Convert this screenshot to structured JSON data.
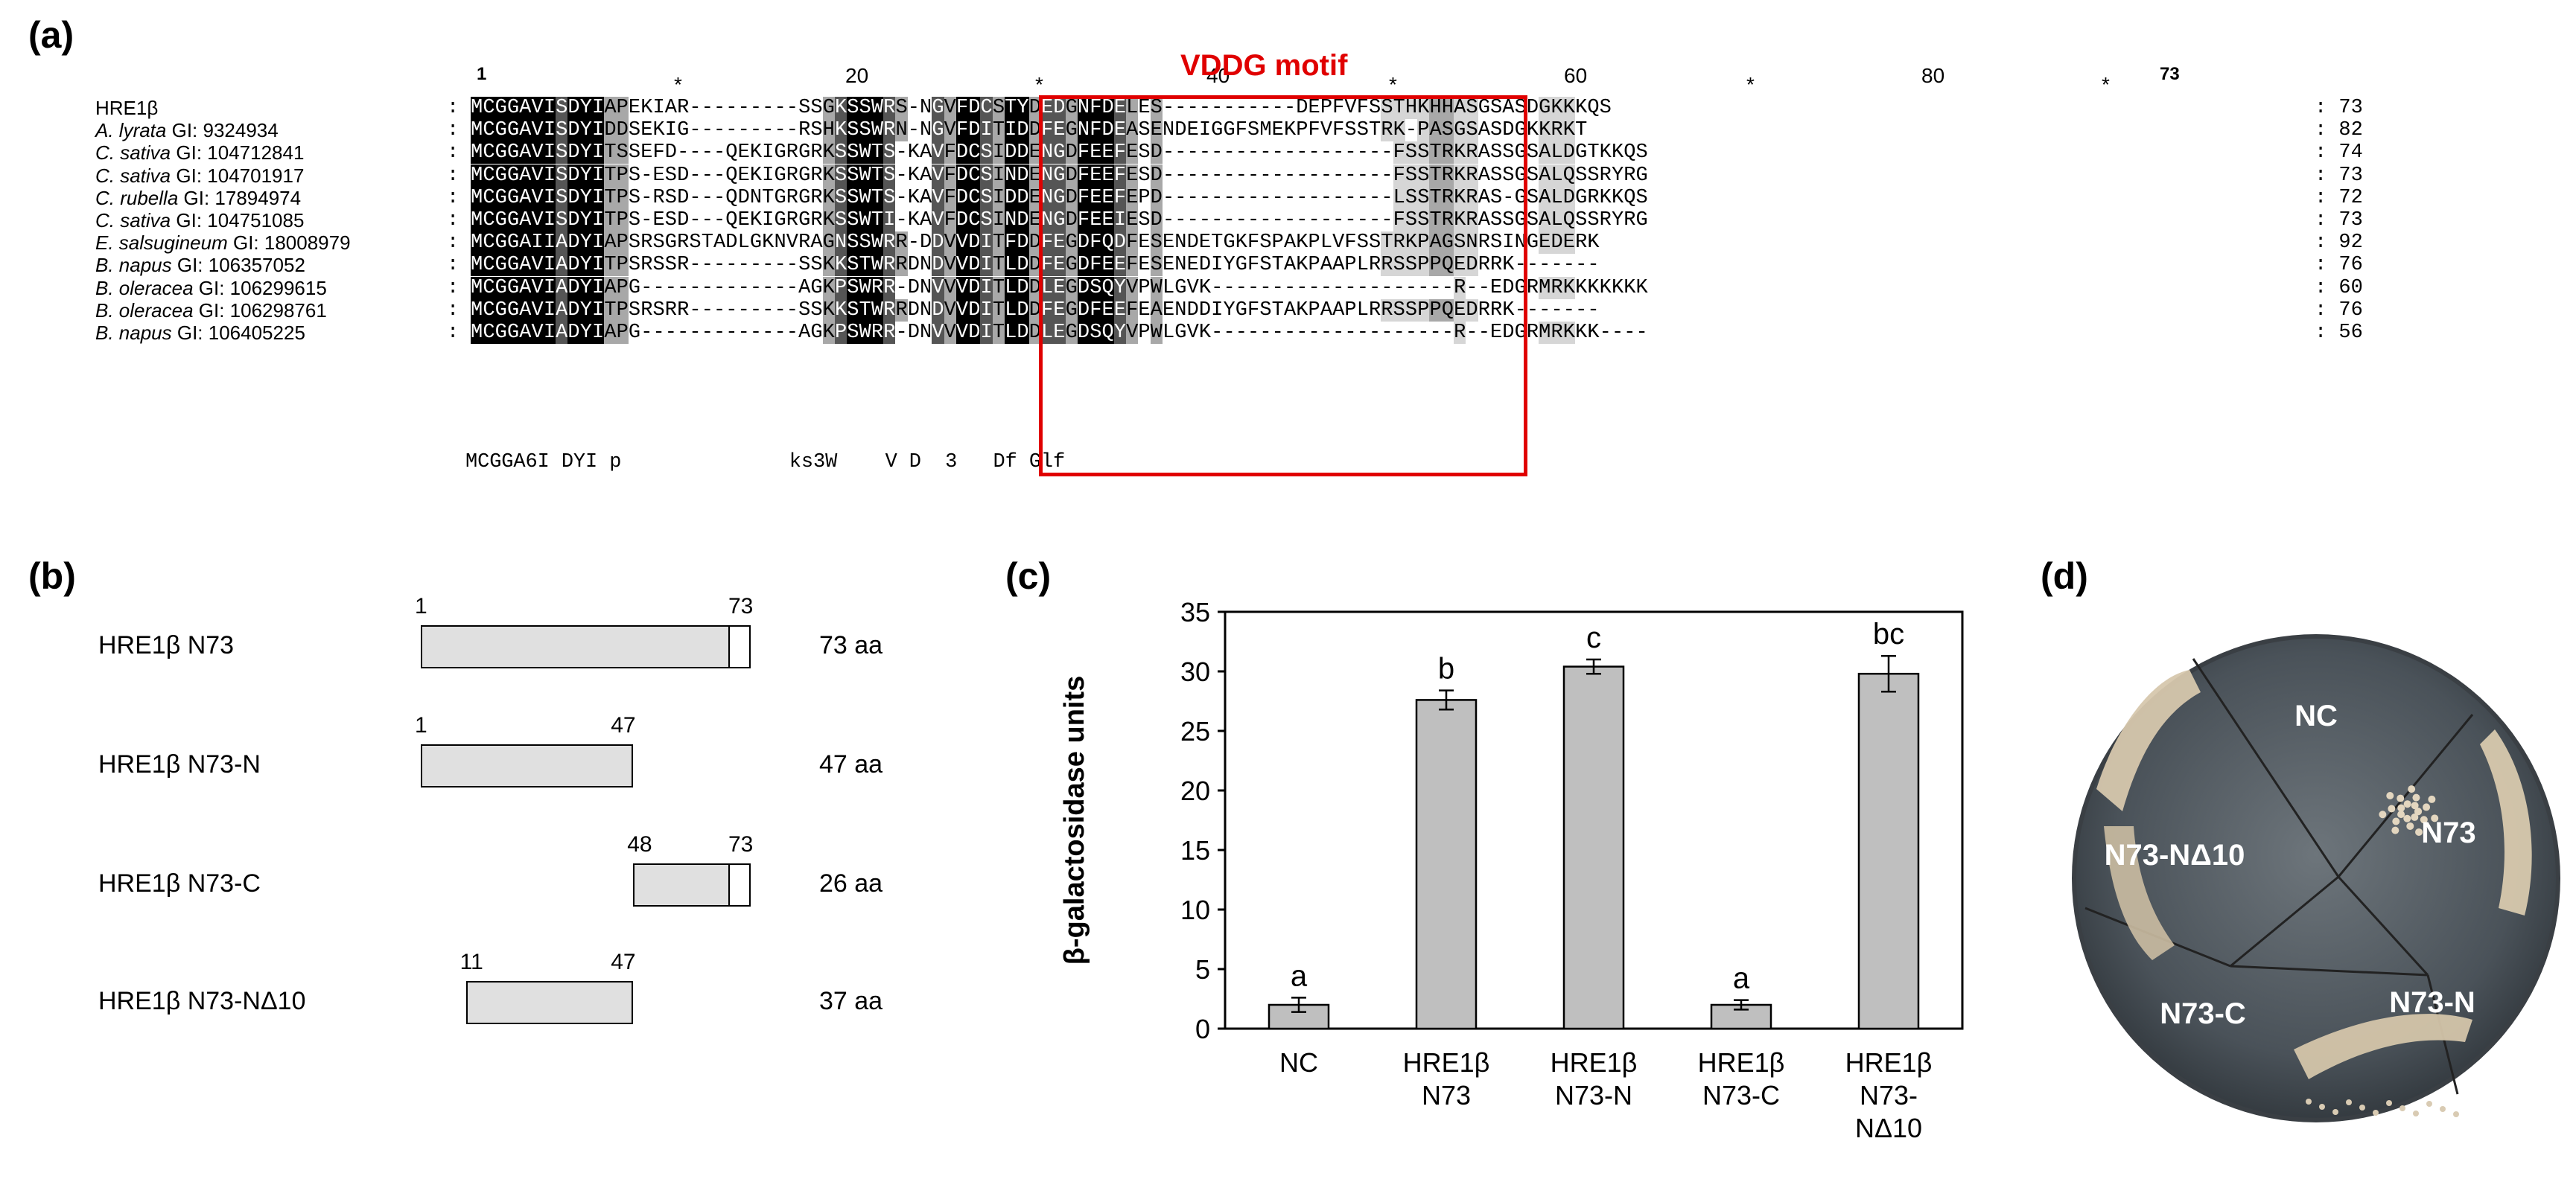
{
  "panels": {
    "a": "(a)",
    "b": "(b)",
    "c": "(c)",
    "d": "(d)"
  },
  "alignment": {
    "motif_label": "VDDG motif",
    "ruler": [
      {
        "text": "1",
        "bold": true
      },
      {
        "text": "*",
        "bold": false
      },
      {
        "text": "20",
        "bold": false
      },
      {
        "text": "*",
        "bold": false
      },
      {
        "text": "40",
        "bold": false
      },
      {
        "text": "*",
        "bold": false
      },
      {
        "text": "60",
        "bold": false
      },
      {
        "text": "*",
        "bold": false
      },
      {
        "text": "80",
        "bold": false
      },
      {
        "text": "*",
        "bold": false
      },
      {
        "text": "73",
        "bold": true
      }
    ],
    "sequences": [
      {
        "species": "HRE1β",
        "gi": "",
        "seq": "MCGGAVISDYIAPEKIAR---------SSGKSSWRS-NGVFDCSTYDEDGNFDELES-----------DEPFVFSSTHKHHASGSASDGKKKQS",
        "len": "73"
      },
      {
        "species": "A. lyrata",
        "gi": "GI: 9324934",
        "seq": "MCGGAVISDYIDDSEKIG---------RSHKSSWRN-NGVFDITIDDFEGNFDEASENDEIGGFSMEKPFVFSSTRK-PASGSASDGKKRKT",
        "len": "82"
      },
      {
        "species": "C. sativa",
        "gi": "GI: 104712841",
        "seq": "MCGGAVISDYITSSEFD----QEKIGRGRKSSWTS-KAVFDCSIDDENGDFEEFESD-------------------FSSTRKRASSGSALDGTKKQS",
        "len": "74"
      },
      {
        "species": "C. sativa",
        "gi": "GI: 104701917",
        "seq": "MCGGAVISDYITPS-ESD---QEKIGRGRKSSWTS-KAVFDCSINDENGDFEEFESD-------------------FSSTRKRASSGSALQSSRYRG",
        "len": "73"
      },
      {
        "species": "C. rubella",
        "gi": "GI: 17894974",
        "seq": "MCGGAVISDYITPS-RSD---QDNTGRGRKSSWTS-KAVFDCSIDDENGDFEEFEPD-------------------LSSTRKRAS-GSALDGRKKQS",
        "len": "72"
      },
      {
        "species": "C. sativa",
        "gi": "GI: 104751085",
        "seq": "MCGGAVISDYITPS-ESD---QEKIGRGRKSSWTI-KAVFDCSINDENGDFEEIESD-------------------FSSTRKRASSGSALQSSRYRG",
        "len": "73"
      },
      {
        "species": "E. salsugineum",
        "gi": "GI: 18008979",
        "seq": "MCGGAIIADYIAPSRSGRSTADLGKNVRAGNSSWRR-DDVVDITFDDFEGDFQDFESENDETGKFSPAKPLVFSSTRKPAGSNRSINGEDERK",
        "len": "92"
      },
      {
        "species": "B. napus",
        "gi": "GI: 106357052",
        "seq": "MCGGAVIADYITPSRSSR---------SSKKSTWRRDNDVVDITLDDFEGDFEEFESENEDIYGFSTAKPAAPLRRSSPPQEDRRK-------",
        "len": "76"
      },
      {
        "species": "B. oleracea",
        "gi": "GI: 106299615",
        "seq": "MCGGAVIADYIAPG-------------AGKPSWRR-DNVVVDITLDDLEGDSQYVPWLGVK--------------------R--EDGRMRKKKKKKK",
        "len": "60"
      },
      {
        "species": "B. oleracea",
        "gi": "GI: 106298761",
        "seq": "MCGGAVIADYITPSRSRR---------SSKKSTWRRDNDVVDITLDDFEGDFEEFEAENDDIYGFSTAKPAAPLRRSSPPQEDRRK-------",
        "len": "76"
      },
      {
        "species": "B. napus",
        "gi": "GI: 106405225",
        "seq": "MCGGAVIADYIAPG-------------AGKPSWRR-DNVVVDITLDDLEGDSQYVPWLGVK--------------------R--EDGRMRKKK----",
        "len": "56"
      }
    ],
    "consensus": "MCGGA6I DYI p              ks3W    V D  3   Df Glf"
  },
  "constructs": [
    {
      "label": "HRE1β N73",
      "start": "1",
      "end": "73",
      "length": "73 aa"
    },
    {
      "label": "HRE1β N73-N",
      "start": "1",
      "end": "47",
      "length": "47 aa"
    },
    {
      "label": "HRE1β N73-C",
      "start": "48",
      "end": "73",
      "length": "26 aa"
    },
    {
      "label": "HRE1β N73-NΔ10",
      "start": "11",
      "end": "47",
      "length": "37 aa"
    }
  ],
  "chart_data": {
    "type": "bar",
    "title": "",
    "xlabel": "",
    "ylabel": "β-galactosidase units",
    "ylim": [
      0,
      35
    ],
    "yticks": [
      0,
      5,
      10,
      15,
      20,
      25,
      30,
      35
    ],
    "categories": [
      [
        "NC"
      ],
      [
        "HRE1β",
        "N73"
      ],
      [
        "HRE1β",
        "N73-N"
      ],
      [
        "HRE1β",
        "N73-C"
      ],
      [
        "HRE1β",
        "N73-",
        "NΔ10"
      ]
    ],
    "values": [
      2.0,
      27.6,
      30.4,
      2.0,
      29.8
    ],
    "errors": [
      0.6,
      0.8,
      0.6,
      0.4,
      1.5
    ],
    "letters": [
      "a",
      "b",
      "c",
      "a",
      "bc"
    ],
    "bar_color": "#bfbfbf"
  },
  "plate": {
    "sectors": [
      "NC",
      "N73",
      "N73-N",
      "N73-C",
      "N73-NΔ10"
    ]
  }
}
